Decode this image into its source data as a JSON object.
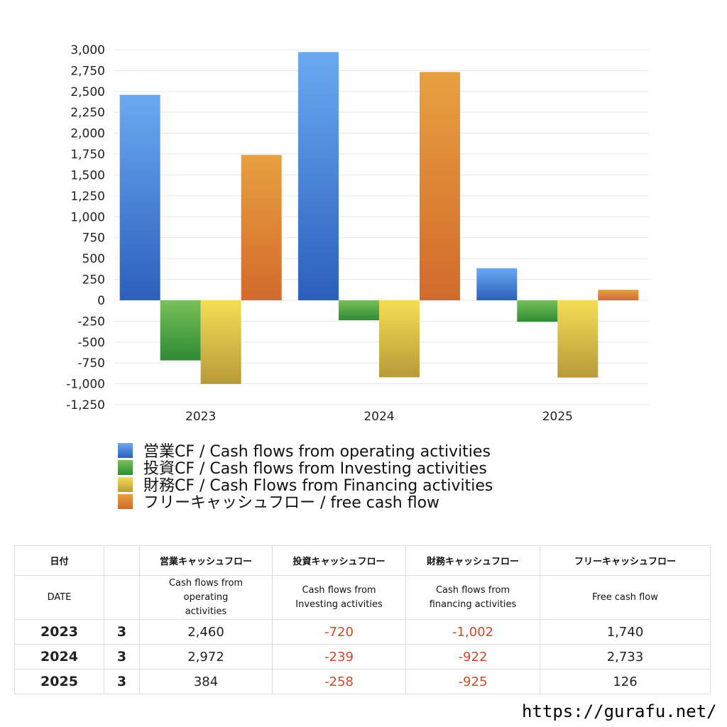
{
  "chart_data": {
    "type": "bar",
    "categories": [
      "2023",
      "2024",
      "2025"
    ],
    "series": [
      {
        "name": "営業CF / Cash flows from operating activities",
        "values": [
          2460,
          2972,
          384
        ],
        "color_top": "#6aaaf2",
        "color_bottom": "#2c5fbc"
      },
      {
        "name": "投資CF / Cash flows from Investing activities",
        "values": [
          -720,
          -239,
          -258
        ],
        "color_top": "#78c05a",
        "color_bottom": "#2f8b34"
      },
      {
        "name": "財務CF / Cash Flows from Financing activities",
        "values": [
          -1002,
          -922,
          -925
        ],
        "color_top": "#f5dd55",
        "color_bottom": "#b89a3a"
      },
      {
        "name": "フリーキャッシュフロー / free cash flow",
        "values": [
          1740,
          2733,
          126
        ],
        "color_top": "#e8a040",
        "color_bottom": "#d26a2c"
      }
    ],
    "yticks": [
      "3,000",
      "2,750",
      "2,500",
      "2,250",
      "2,000",
      "1,750",
      "1,500",
      "1,250",
      "1,000",
      "750",
      "500",
      "250",
      "0",
      "-250",
      "-500",
      "-750",
      "-1,000",
      "-1,250"
    ],
    "ylim": [
      -1250,
      3000
    ],
    "grid": true,
    "legend_position": "bottom"
  },
  "table": {
    "headers_ja": [
      "日付",
      "営業キャッシュフロー",
      "投資キャッシュフロー",
      "財務キャッシュフロー",
      "フリーキャッシュフロー"
    ],
    "headers_en": [
      "DATE",
      "Cash flows from operating activities",
      "Cash flows from Investing activities",
      "Cash flows from financing activities",
      "Free cash flow"
    ],
    "rows": [
      {
        "year": "2023",
        "month": "3",
        "values": [
          "2,460",
          "-720",
          "-1,002",
          "1,740"
        ]
      },
      {
        "year": "2024",
        "month": "3",
        "values": [
          "2,972",
          "-239",
          "-922",
          "2,733"
        ]
      },
      {
        "year": "2025",
        "month": "3",
        "values": [
          "384",
          "-258",
          "-925",
          "126"
        ]
      }
    ]
  },
  "colors": {
    "negative_text": "#d2452b",
    "gridline": "#e6e6e6"
  },
  "footer": {
    "url": "https://gurafu.net/"
  }
}
